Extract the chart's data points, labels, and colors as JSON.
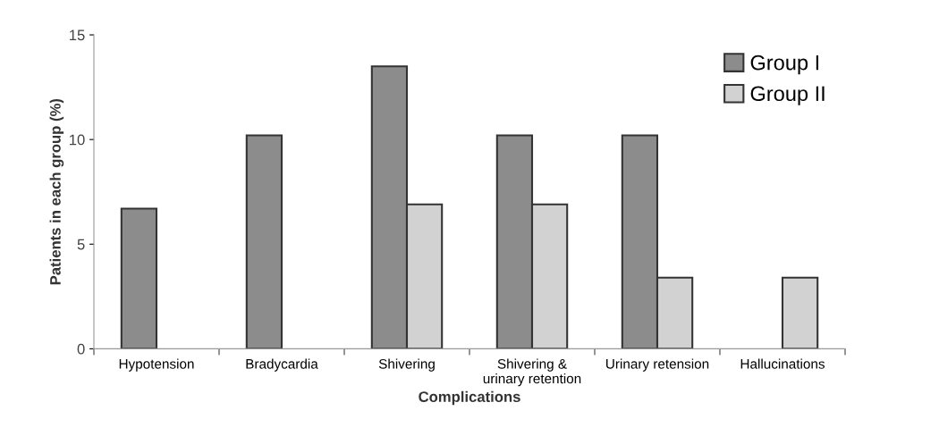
{
  "chart_data": {
    "type": "bar",
    "xlabel": "Complications",
    "ylabel": "Patients in each group (%)",
    "categories": [
      "Hypotension",
      "Bradycardia",
      "Shivering",
      "Shivering &\nurinary retention",
      "Urinary retension",
      "Hallucinations"
    ],
    "series": [
      {
        "name": "Group I",
        "color": "#8c8c8c",
        "values": [
          6.7,
          10.2,
          13.5,
          10.2,
          10.2,
          null
        ]
      },
      {
        "name": "Group II",
        "color": "#d2d2d2",
        "values": [
          null,
          null,
          6.9,
          6.9,
          3.4,
          3.4
        ]
      }
    ],
    "ylim": [
      0,
      15
    ],
    "yticks": [
      0,
      5,
      10,
      15
    ],
    "grid": false,
    "legend": "top right"
  }
}
